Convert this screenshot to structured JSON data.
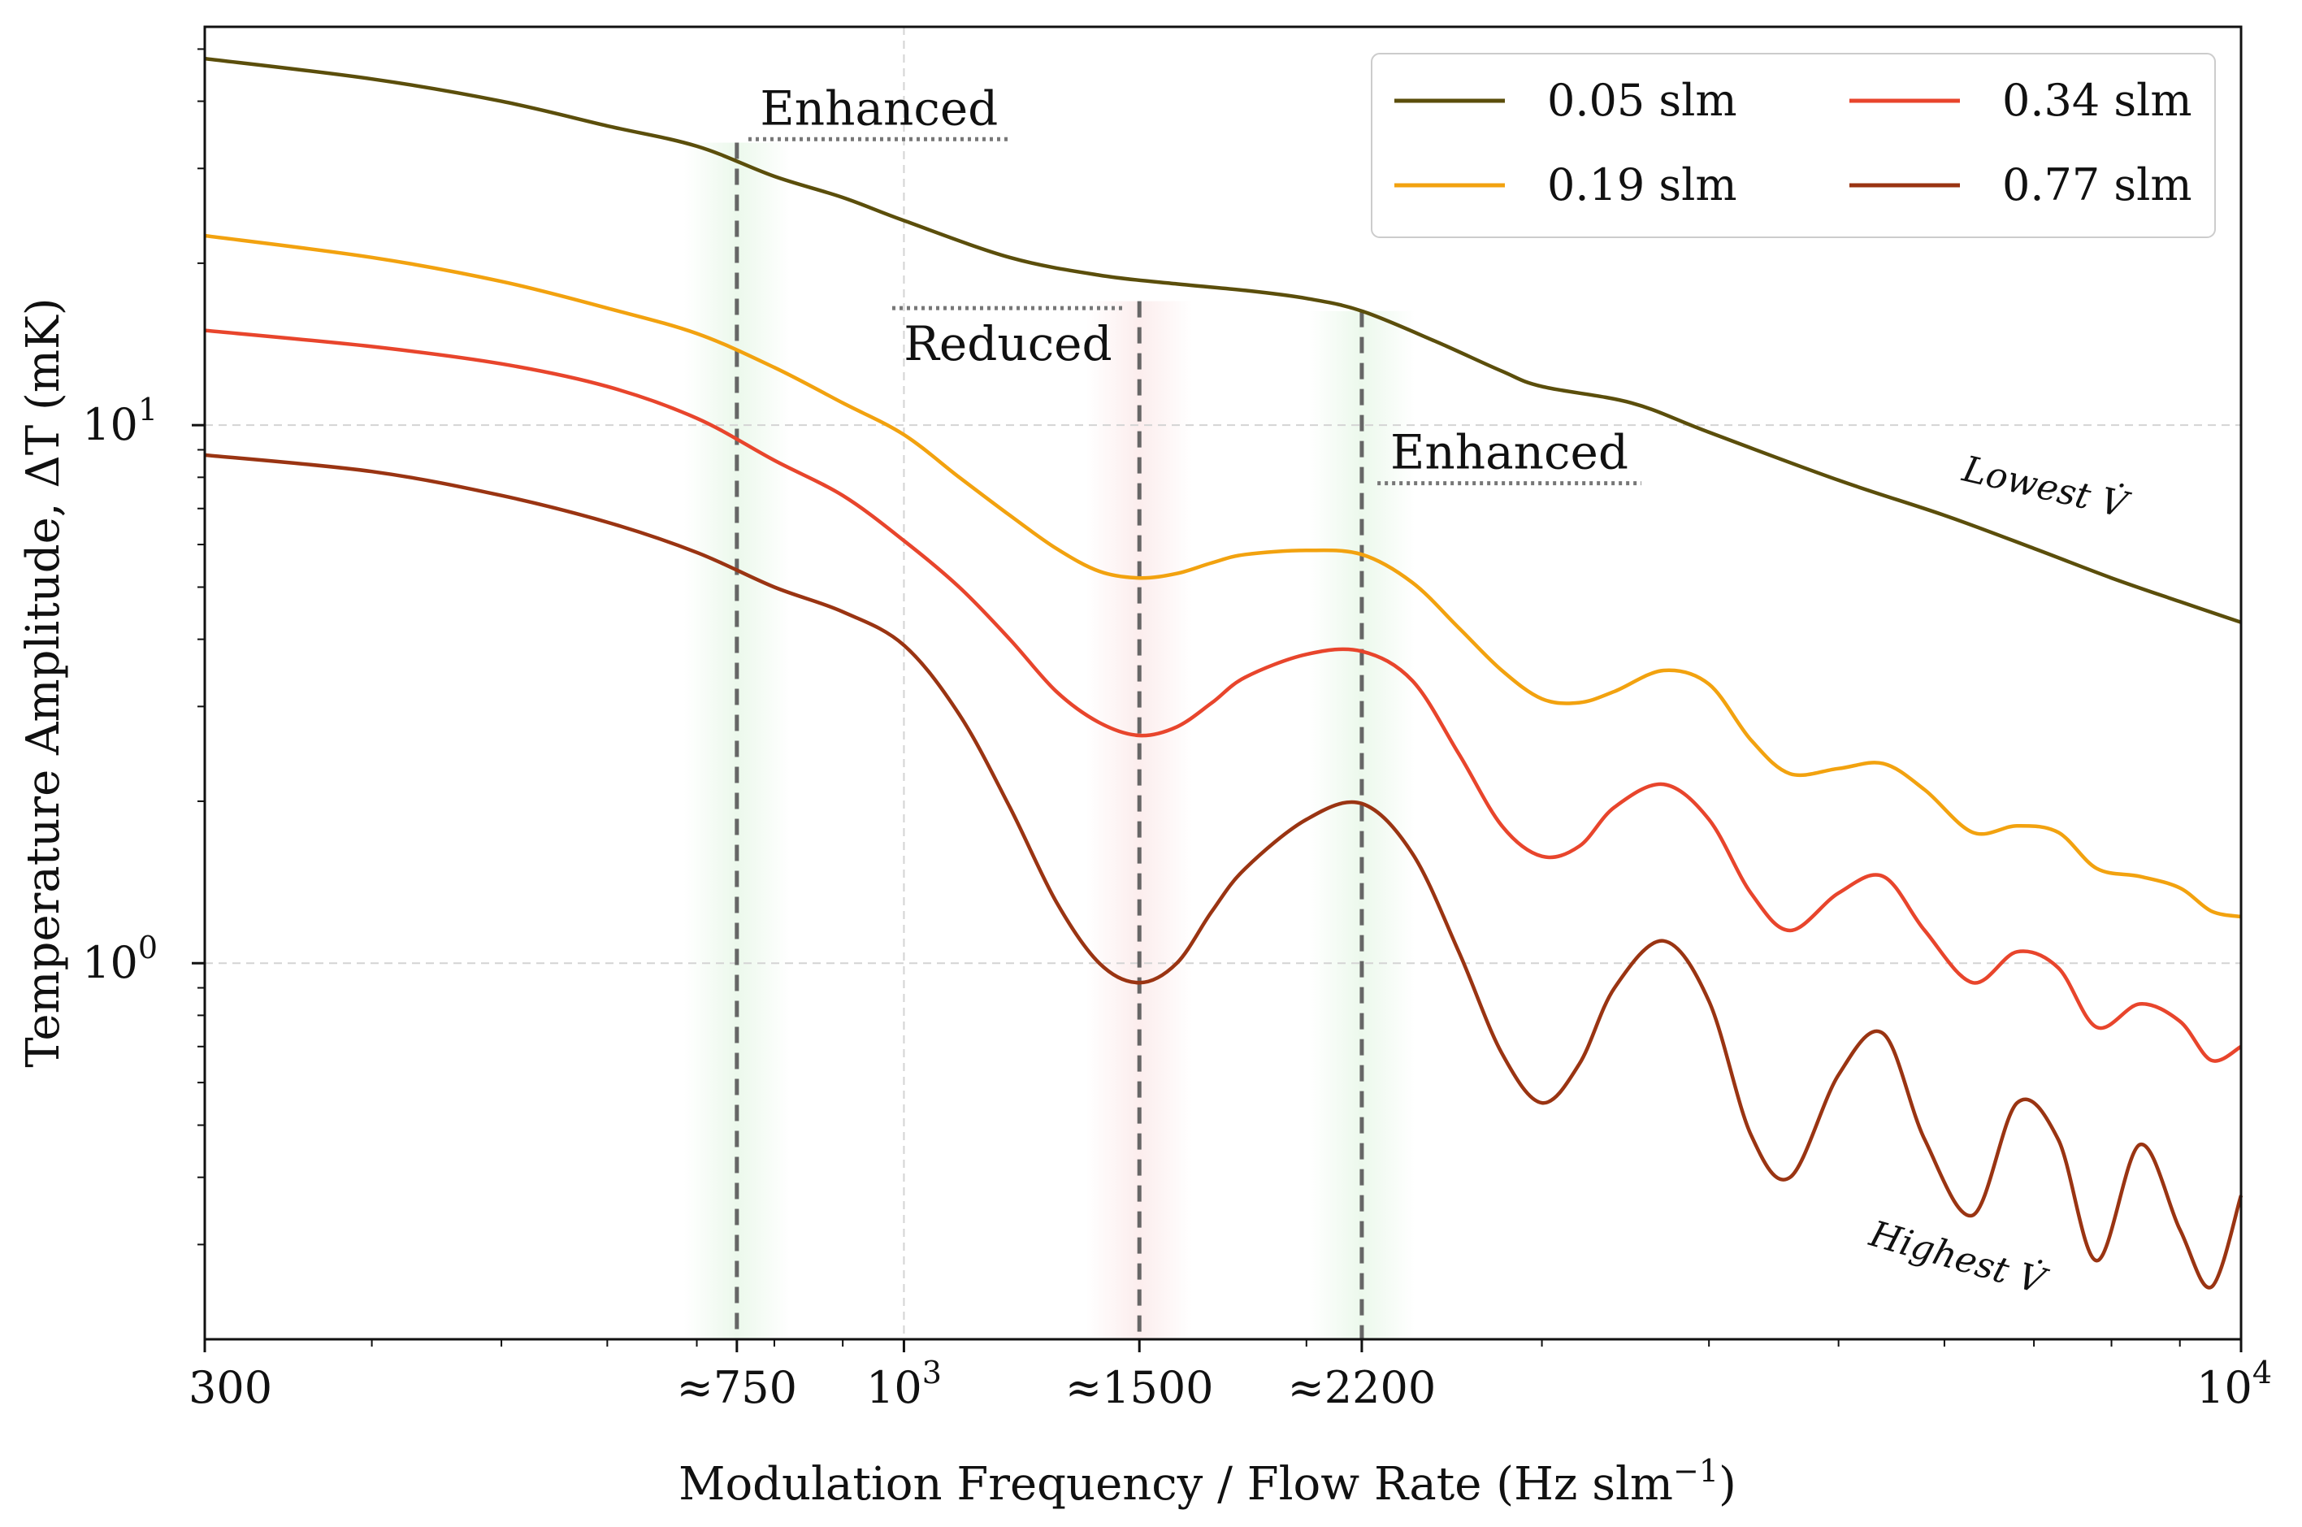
{
  "chart_data": {
    "type": "line",
    "title": "",
    "xlabel": "Modulation Frequency / Flow Rate (Hz slm",
    "xlabel_sup": "−1",
    "xlabel_tail": ")",
    "ylabel": "Temperature Amplitude, ΔT (mK)",
    "xscale": "log",
    "yscale": "log",
    "xlim": [
      300,
      10000
    ],
    "ylim": [
      0.2,
      55
    ],
    "xticks": [
      {
        "value": 300,
        "label": "300"
      },
      {
        "value": 750,
        "label": "≈750"
      },
      {
        "value": 1000,
        "label": "10",
        "sup": "3"
      },
      {
        "value": 1500,
        "label": "≈1500"
      },
      {
        "value": 2200,
        "label": "≈2200"
      },
      {
        "value": 10000,
        "label": "10",
        "sup": "4"
      }
    ],
    "yticks": [
      {
        "value": 1,
        "label": "10",
        "sup": "0"
      },
      {
        "value": 10,
        "label": "10",
        "sup": "1"
      }
    ],
    "grid": true,
    "legend_position": "top-right",
    "series": [
      {
        "name": "0.05 slm",
        "color": "#5b4e0b",
        "x": [
          300,
          400,
          500,
          600,
          700,
          800,
          900,
          1000,
          1200,
          1400,
          1600,
          1800,
          2000,
          2200,
          2500,
          2800,
          3000,
          3500,
          4000,
          5000,
          6000,
          7000,
          8000,
          9000,
          10000
        ],
        "y": [
          48,
          44,
          40,
          36,
          33,
          29,
          26.5,
          24,
          20.5,
          19,
          18.3,
          17.8,
          17.2,
          16.3,
          14.3,
          12.6,
          11.8,
          11.0,
          9.7,
          7.9,
          6.8,
          5.9,
          5.2,
          4.7,
          4.3
        ]
      },
      {
        "name": "0.19 slm",
        "color": "#f2a20f",
        "x": [
          300,
          400,
          500,
          600,
          700,
          800,
          900,
          1000,
          1100,
          1200,
          1300,
          1400,
          1500,
          1600,
          1700,
          1800,
          2000,
          2200,
          2400,
          2600,
          2800,
          3000,
          3200,
          3400,
          3700,
          4000,
          4300,
          4600,
          5000,
          5400,
          5800,
          6300,
          6800,
          7300,
          7800,
          8400,
          9000,
          9500,
          10000
        ],
        "y": [
          22.5,
          20.5,
          18.5,
          16.5,
          14.8,
          12.8,
          11.0,
          9.6,
          8.0,
          6.8,
          5.9,
          5.35,
          5.2,
          5.3,
          5.55,
          5.75,
          5.85,
          5.75,
          5.1,
          4.2,
          3.5,
          3.1,
          3.05,
          3.2,
          3.5,
          3.3,
          2.6,
          2.25,
          2.3,
          2.35,
          2.1,
          1.75,
          1.8,
          1.75,
          1.5,
          1.45,
          1.38,
          1.25,
          1.22
        ]
      },
      {
        "name": "0.34 slm",
        "color": "#e8452c",
        "x": [
          300,
          400,
          500,
          600,
          700,
          800,
          900,
          1000,
          1100,
          1200,
          1300,
          1400,
          1500,
          1600,
          1700,
          1800,
          2000,
          2200,
          2400,
          2600,
          2800,
          3000,
          3200,
          3400,
          3700,
          4000,
          4300,
          4600,
          5000,
          5400,
          5800,
          6300,
          6800,
          7300,
          7800,
          8400,
          9000,
          9500,
          10000
        ],
        "y": [
          15,
          14,
          13,
          11.8,
          10.3,
          8.6,
          7.4,
          6.1,
          5.0,
          4.0,
          3.2,
          2.8,
          2.65,
          2.75,
          3.05,
          3.4,
          3.75,
          3.8,
          3.35,
          2.45,
          1.8,
          1.58,
          1.65,
          1.95,
          2.15,
          1.85,
          1.35,
          1.15,
          1.35,
          1.45,
          1.15,
          0.92,
          1.05,
          0.98,
          0.76,
          0.84,
          0.78,
          0.66,
          0.7
        ]
      },
      {
        "name": "0.77 slm",
        "color": "#9a3412",
        "x": [
          300,
          400,
          500,
          600,
          700,
          800,
          900,
          1000,
          1100,
          1200,
          1300,
          1400,
          1500,
          1600,
          1700,
          1800,
          2000,
          2200,
          2400,
          2600,
          2800,
          3000,
          3200,
          3400,
          3700,
          4000,
          4300,
          4600,
          5000,
          5400,
          5800,
          6300,
          6800,
          7300,
          7800,
          8400,
          9000,
          9500,
          10000
        ],
        "y": [
          8.8,
          8.2,
          7.4,
          6.6,
          5.8,
          5.0,
          4.5,
          3.9,
          2.9,
          1.95,
          1.3,
          1.0,
          0.92,
          1.0,
          1.25,
          1.5,
          1.85,
          1.98,
          1.6,
          1.05,
          0.68,
          0.55,
          0.65,
          0.9,
          1.1,
          0.85,
          0.48,
          0.4,
          0.62,
          0.74,
          0.47,
          0.34,
          0.55,
          0.47,
          0.28,
          0.46,
          0.32,
          0.25,
          0.37
        ]
      }
    ],
    "markers": [
      {
        "x": 750,
        "y_top": 33.5,
        "band": "#c8ecc8"
      },
      {
        "x": 1500,
        "y_top": 17.0,
        "band": "#f6cccc"
      },
      {
        "x": 2200,
        "y_top": 16.3,
        "band": "#c8ecc8"
      }
    ],
    "annotations": [
      {
        "text": "Enhanced",
        "x1": 765,
        "x2": 1200,
        "y": 34
      },
      {
        "text": "Reduced",
        "x1": 980,
        "x2": 1460,
        "y": 16.5
      },
      {
        "text": "Enhanced",
        "x1": 2260,
        "x2": 3560,
        "y": 7.8
      }
    ],
    "curve_labels": [
      {
        "text": "Lowest",
        "symbol": "V̇",
        "x": 7100,
        "y": 7.3,
        "rotate": 13
      },
      {
        "text": "Highest",
        "symbol": "V̇",
        "x": 6100,
        "y": 0.27,
        "rotate": 16
      }
    ]
  }
}
